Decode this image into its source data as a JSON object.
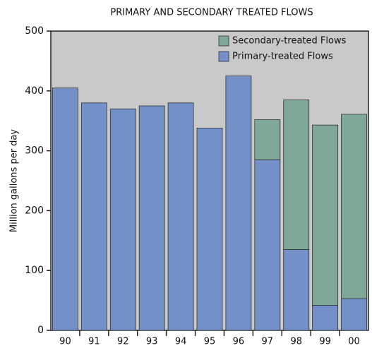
{
  "chart_data": {
    "type": "stacked-bar",
    "title": "PRIMARY AND SECONDARY TREATED FLOWS",
    "y_label": "Million gallons per day",
    "categories": [
      "90",
      "91",
      "92",
      "93",
      "94",
      "95",
      "96",
      "97",
      "98",
      "99",
      "00"
    ],
    "series": [
      {
        "name": "Primary-treated Flows",
        "color": "#7391c8",
        "values": [
          405,
          380,
          370,
          375,
          380,
          338,
          425,
          285,
          135,
          42,
          53
        ]
      },
      {
        "name": "Secondary-treated Flows",
        "color": "#7fa898",
        "values": [
          0,
          0,
          0,
          0,
          0,
          0,
          0,
          67,
          250,
          301,
          308
        ]
      }
    ],
    "ylim": [
      0,
      500
    ],
    "yticks": [
      0,
      100,
      200,
      300,
      400,
      500
    ],
    "legend": "upper right",
    "background": "#c9c9c9"
  }
}
